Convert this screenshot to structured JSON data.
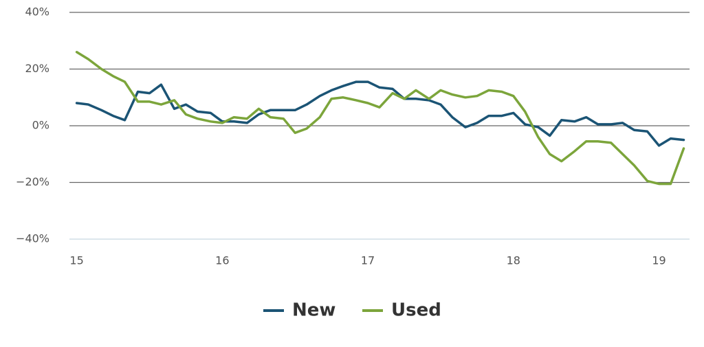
{
  "chart_data": {
    "type": "line",
    "x": [
      15,
      15.08,
      15.17,
      15.25,
      15.33,
      15.42,
      15.5,
      15.58,
      15.67,
      15.75,
      15.83,
      15.92,
      16,
      16.08,
      16.17,
      16.25,
      16.33,
      16.42,
      16.5,
      16.58,
      16.67,
      16.75,
      16.83,
      16.92,
      17,
      17.08,
      17.17,
      17.25,
      17.33,
      17.42,
      17.5,
      17.58,
      17.67,
      17.75,
      17.83,
      17.92,
      18,
      18.08,
      18.17,
      18.25,
      18.33,
      18.42,
      18.5,
      18.58,
      18.67,
      18.75,
      18.83,
      18.92,
      19,
      19.08,
      19.17
    ],
    "series": [
      {
        "name": "New",
        "color": "#1b5475",
        "values": [
          8,
          7.5,
          5.5,
          3.5,
          2,
          12,
          11.5,
          14.5,
          6,
          7.5,
          5,
          4.5,
          1.5,
          1.5,
          1,
          4,
          5.5,
          5.5,
          5.5,
          7.5,
          10.5,
          12.5,
          14,
          15.5,
          15.5,
          13.5,
          13,
          9.5,
          9.5,
          9,
          7.5,
          3,
          -0.5,
          1,
          3.5,
          3.5,
          4.5,
          0.5,
          -0.5,
          -3.5,
          2,
          1.5,
          3,
          0.5,
          0.5,
          1,
          -1.5,
          -2,
          -7,
          -4.5,
          -5
        ]
      },
      {
        "name": "Used",
        "color": "#7ca53b",
        "values": [
          26,
          23.5,
          20,
          17.5,
          15.5,
          8.5,
          8.5,
          7.5,
          9,
          4,
          2.5,
          1.5,
          1,
          3,
          2.5,
          6,
          3,
          2.5,
          -2.5,
          -1,
          3,
          9.5,
          10,
          9,
          8,
          6.5,
          11.5,
          9.5,
          12.5,
          9.5,
          12.5,
          11,
          10,
          10.5,
          12.5,
          12,
          10.5,
          5,
          -4,
          -10,
          -12.5,
          -9,
          -5.5,
          -5.5,
          -6,
          -10,
          -14,
          -19.5,
          -20.5,
          -20.5,
          -8
        ]
      }
    ],
    "xlim": [
      14.95,
      19.21
    ],
    "xticks": [
      15,
      16,
      17,
      18,
      19
    ],
    "ylim": [
      -40,
      40
    ],
    "yticks": [
      {
        "value": -40,
        "label": "−40%"
      },
      {
        "value": -20,
        "label": "−20%"
      },
      {
        "value": 0,
        "label": "0%"
      },
      {
        "value": 20,
        "label": "20%"
      },
      {
        "value": 40,
        "label": "40%"
      }
    ],
    "grid": true,
    "legend": "bottom"
  }
}
